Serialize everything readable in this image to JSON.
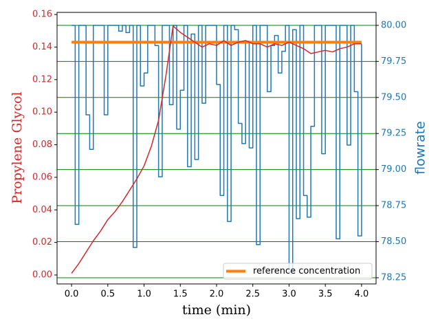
{
  "chart_data": {
    "type": "line",
    "xlabel": "time (min)",
    "ylabel": "Propylene Glycol",
    "y2label": "flowrate",
    "xlim": [
      -0.2,
      4.2
    ],
    "ylim": [
      -0.0055,
      0.1613
    ],
    "y2lim": [
      78.207,
      80.09
    ],
    "xticks": [
      {
        "value": 0,
        "label": "0.0"
      },
      {
        "value": 0.5,
        "label": "0.5"
      },
      {
        "value": 1,
        "label": "1.0"
      },
      {
        "value": 1.5,
        "label": "1.5"
      },
      {
        "value": 2,
        "label": "2.0"
      },
      {
        "value": 2.5,
        "label": "2.5"
      },
      {
        "value": 3,
        "label": "3.0"
      },
      {
        "value": 3.5,
        "label": "3.5"
      },
      {
        "value": 4,
        "label": "4.0"
      }
    ],
    "yticks": [
      {
        "value": 0,
        "label": "0.00"
      },
      {
        "value": 0.02,
        "label": "0.02"
      },
      {
        "value": 0.04,
        "label": "0.04"
      },
      {
        "value": 0.06,
        "label": "0.06"
      },
      {
        "value": 0.08,
        "label": "0.08"
      },
      {
        "value": 0.1,
        "label": "0.10"
      },
      {
        "value": 0.12,
        "label": "0.12"
      },
      {
        "value": 0.14,
        "label": "0.14"
      },
      {
        "value": 0.16,
        "label": "0.16"
      }
    ],
    "y2ticks": [
      {
        "value": 78.25,
        "label": "78.25"
      },
      {
        "value": 78.5,
        "label": "78.50"
      },
      {
        "value": 78.75,
        "label": "78.75"
      },
      {
        "value": 79,
        "label": "79.00"
      },
      {
        "value": 79.25,
        "label": "79.25"
      },
      {
        "value": 79.5,
        "label": "79.50"
      },
      {
        "value": 79.75,
        "label": "79.75"
      },
      {
        "value": 80,
        "label": "80.00"
      }
    ],
    "grid": "y2",
    "grid_color": "#008000",
    "ylabel_color": "#d62728",
    "y2label_color": "#1f77b4",
    "legend": "lower right",
    "series": [
      {
        "name": "reference concentration",
        "color": "#ff7f0e",
        "x": [
          0,
          4
        ],
        "values": [
          0.143,
          0.143
        ]
      },
      {
        "color": "#d62728",
        "x": [
          0,
          0.1,
          0.2,
          0.3,
          0.4,
          0.5,
          0.6,
          0.7,
          0.8,
          0.9,
          1,
          1.1,
          1.2,
          1.3,
          1.4,
          1.5,
          1.6,
          1.7,
          1.8,
          1.9,
          2,
          2.1,
          2.2,
          2.3,
          2.4,
          2.5,
          2.6,
          2.7,
          2.8,
          2.9,
          3,
          3.1,
          3.2,
          3.3,
          3.4,
          3.5,
          3.6,
          3.7,
          3.8,
          3.9,
          4
        ],
        "values": [
          0.001,
          0.007,
          0.014,
          0.021,
          0.027,
          0.034,
          0.039,
          0.045,
          0.052,
          0.059,
          0.067,
          0.079,
          0.095,
          0.122,
          0.153,
          0.149,
          0.146,
          0.143,
          0.14,
          0.142,
          0.141,
          0.144,
          0.141,
          0.143,
          0.144,
          0.142,
          0.142,
          0.14,
          0.142,
          0.141,
          0.143,
          0.141,
          0.139,
          0.136,
          0.137,
          0.138,
          0.137,
          0.139,
          0.14,
          0.142,
          0.142
        ]
      },
      {
        "color": "#1f77b4",
        "axis": "y2",
        "step": "post",
        "x": [
          0,
          0.05,
          0.1,
          0.15,
          0.2,
          0.25,
          0.3,
          0.35,
          0.4,
          0.45,
          0.5,
          0.55,
          0.6,
          0.65,
          0.7,
          0.75,
          0.8,
          0.85,
          0.9,
          0.95,
          1,
          1.05,
          1.1,
          1.15,
          1.2,
          1.25,
          1.3,
          1.35,
          1.4,
          1.45,
          1.5,
          1.55,
          1.6,
          1.65,
          1.7,
          1.75,
          1.8,
          1.85,
          1.9,
          1.95,
          2,
          2.05,
          2.1,
          2.15,
          2.2,
          2.25,
          2.3,
          2.35,
          2.4,
          2.45,
          2.5,
          2.55,
          2.6,
          2.65,
          2.7,
          2.75,
          2.8,
          2.85,
          2.9,
          2.95,
          3,
          3.05,
          3.1,
          3.15,
          3.2,
          3.25,
          3.3,
          3.35,
          3.4,
          3.45,
          3.5,
          3.55,
          3.6,
          3.65,
          3.7,
          3.75,
          3.8,
          3.85,
          3.9,
          3.95,
          4
        ],
        "values": [
          80,
          78.62,
          80,
          80,
          79.38,
          79.14,
          80,
          80,
          80,
          79.38,
          80,
          80,
          80,
          79.96,
          80,
          79.95,
          80,
          78.46,
          80,
          79.58,
          79.67,
          80,
          80,
          79.86,
          78.95,
          80,
          80,
          79.45,
          80,
          79.28,
          79.55,
          80,
          79.02,
          79.94,
          79.07,
          80,
          79.46,
          80,
          80,
          80,
          79.59,
          78.82,
          80,
          78.64,
          80,
          79.97,
          79.32,
          79.18,
          79.89,
          79.15,
          80,
          78.48,
          80,
          80,
          79.54,
          79.86,
          79.93,
          79.67,
          79.82,
          80,
          78.29,
          79.97,
          78.66,
          80,
          78.82,
          78.67,
          79.3,
          80,
          80,
          79.11,
          80,
          80,
          80,
          78.52,
          80,
          80,
          79.17,
          80,
          79.54,
          78.54,
          79.87
        ]
      }
    ]
  }
}
